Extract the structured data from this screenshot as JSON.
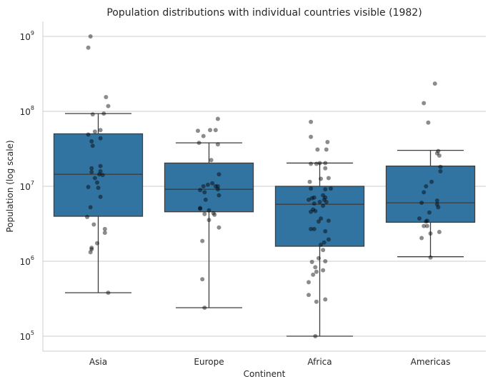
{
  "chart_data": {
    "type": "box",
    "title": "Population distributions with individual countries visible (1982)",
    "xlabel": "Continent",
    "ylabel": "Population (log scale)",
    "yscale": "log10",
    "ylim_log10": [
      4.8,
      9.2
    ],
    "yticks": [
      {
        "base": "10",
        "exp": "5",
        "log": 5
      },
      {
        "base": "10",
        "exp": "6",
        "log": 6
      },
      {
        "base": "10",
        "exp": "7",
        "log": 7
      },
      {
        "base": "10",
        "exp": "8",
        "log": 8
      },
      {
        "base": "10",
        "exp": "9",
        "log": 9
      }
    ],
    "grid": "horizontal",
    "box_color": "#3274a1",
    "point_color": "#000000",
    "categories": [
      "Asia",
      "Europe",
      "Africa",
      "Americas"
    ],
    "boxes_log10": [
      {
        "whisker_low": 5.58,
        "q1": 6.6,
        "median": 7.16,
        "q3": 7.7,
        "whisker_high": 7.97
      },
      {
        "whisker_low": 5.38,
        "q1": 6.66,
        "median": 6.96,
        "q3": 7.31,
        "whisker_high": 7.58
      },
      {
        "whisker_low": 5.0,
        "q1": 6.2,
        "median": 6.76,
        "q3": 7.0,
        "whisker_high": 7.31
      },
      {
        "whisker_low": 6.06,
        "q1": 6.52,
        "median": 6.78,
        "q3": 7.27,
        "whisker_high": 7.48
      }
    ],
    "points_log10": [
      [
        [
          9.0,
          -0.07
        ],
        [
          8.85,
          -0.09
        ],
        [
          8.19,
          0.07
        ],
        [
          8.07,
          0.09
        ],
        [
          7.96,
          -0.05
        ],
        [
          7.97,
          0.05
        ],
        [
          7.73,
          -0.03
        ],
        [
          7.75,
          0.02
        ],
        [
          7.69,
          -0.09
        ],
        [
          7.64,
          0.02
        ],
        [
          7.6,
          -0.06
        ],
        [
          7.54,
          -0.05
        ],
        [
          7.24,
          -0.06
        ],
        [
          7.27,
          0.02
        ],
        [
          7.19,
          -0.06
        ],
        [
          7.2,
          0.02
        ],
        [
          7.16,
          0.01
        ],
        [
          7.15,
          0.04
        ],
        [
          7.11,
          -0.03
        ],
        [
          7.05,
          -0.01
        ],
        [
          6.99,
          -0.09
        ],
        [
          6.98,
          0
        ],
        [
          6.86,
          0.02
        ],
        [
          6.72,
          -0.07
        ],
        [
          6.59,
          -0.1
        ],
        [
          6.49,
          -0.04
        ],
        [
          6.43,
          0.06
        ],
        [
          6.38,
          0.06
        ],
        [
          6.24,
          -0.01
        ],
        [
          6.18,
          -0.06
        ],
        [
          6.16,
          -0.06
        ],
        [
          6.12,
          -0.07
        ],
        [
          5.58,
          0.09
        ]
      ],
      [
        [
          7.9,
          0.08
        ],
        [
          7.74,
          -0.1
        ],
        [
          7.75,
          0.01
        ],
        [
          7.75,
          0.06
        ],
        [
          7.67,
          -0.05
        ],
        [
          7.58,
          -0.09
        ],
        [
          7.56,
          0.08
        ],
        [
          7.35,
          0.02
        ],
        [
          7.16,
          0.09
        ],
        [
          7.0,
          -0.05
        ],
        [
          7.02,
          -0.01
        ],
        [
          7.04,
          0.03
        ],
        [
          7.0,
          0.06
        ],
        [
          7.0,
          0.08
        ],
        [
          6.95,
          -0.08
        ],
        [
          6.96,
          0.08
        ],
        [
          6.92,
          -0.04
        ],
        [
          6.88,
          0.09
        ],
        [
          6.82,
          -0.03
        ],
        [
          6.7,
          -0.08
        ],
        [
          6.71,
          -0.08
        ],
        [
          6.68,
          0
        ],
        [
          6.64,
          0.04
        ],
        [
          6.63,
          -0.04
        ],
        [
          6.62,
          0.05
        ],
        [
          6.55,
          0
        ],
        [
          6.45,
          0.09
        ],
        [
          6.27,
          -0.06
        ],
        [
          5.76,
          -0.06
        ],
        [
          5.38,
          -0.04
        ]
      ],
      [
        [
          7.86,
          -0.08
        ],
        [
          7.66,
          -0.08
        ],
        [
          7.59,
          0.07
        ],
        [
          7.49,
          -0.02
        ],
        [
          7.49,
          0.06
        ],
        [
          7.3,
          -0.08
        ],
        [
          7.3,
          -0.03
        ],
        [
          7.31,
          0
        ],
        [
          7.31,
          0.05
        ],
        [
          7.24,
          0.05
        ],
        [
          7.1,
          0.01
        ],
        [
          7.11,
          0.08
        ],
        [
          7.06,
          -0.09
        ],
        [
          6.97,
          -0.08
        ],
        [
          6.96,
          0.05
        ],
        [
          6.97,
          0.1
        ],
        [
          6.88,
          0.03
        ],
        [
          6.82,
          -0.1
        ],
        [
          6.84,
          -0.07
        ],
        [
          6.85,
          -0.05
        ],
        [
          6.85,
          0.05
        ],
        [
          6.82,
          0.04
        ],
        [
          6.79,
          0.06
        ],
        [
          6.79,
          0
        ],
        [
          6.77,
          -0.05
        ],
        [
          6.74,
          0.03
        ],
        [
          6.66,
          -0.08
        ],
        [
          6.69,
          -0.06
        ],
        [
          6.67,
          -0.04
        ],
        [
          6.57,
          0.01
        ],
        [
          6.53,
          -0.01
        ],
        [
          6.54,
          0.08
        ],
        [
          6.43,
          -0.08
        ],
        [
          6.43,
          -0.05
        ],
        [
          6.4,
          0.05
        ],
        [
          6.29,
          0.08
        ],
        [
          6.25,
          0.04
        ],
        [
          6.22,
          0.01
        ],
        [
          6.15,
          0.03
        ],
        [
          6.04,
          -0.01
        ],
        [
          5.99,
          -0.07
        ],
        [
          6.0,
          0.05
        ],
        [
          5.92,
          -0.04
        ],
        [
          5.88,
          0.03
        ],
        [
          5.86,
          -0.03
        ],
        [
          5.82,
          -0.06
        ],
        [
          5.72,
          -0.1
        ],
        [
          5.55,
          -0.1
        ],
        [
          5.49,
          0.05
        ],
        [
          5.46,
          -0.03
        ],
        [
          5.0,
          -0.04
        ]
      ],
      [
        [
          8.37,
          0.04
        ],
        [
          8.11,
          -0.06
        ],
        [
          7.85,
          -0.02
        ],
        [
          7.47,
          0.07
        ],
        [
          7.44,
          0.06
        ],
        [
          7.41,
          0.08
        ],
        [
          7.26,
          0.09
        ],
        [
          7.2,
          0.09
        ],
        [
          7.06,
          0.01
        ],
        [
          7.0,
          -0.04
        ],
        [
          6.92,
          -0.06
        ],
        [
          6.81,
          0.06
        ],
        [
          6.78,
          -0.08
        ],
        [
          6.76,
          0.06
        ],
        [
          6.72,
          0.07
        ],
        [
          6.65,
          -0.01
        ],
        [
          6.57,
          -0.1
        ],
        [
          6.53,
          -0.04
        ],
        [
          6.54,
          -0.03
        ],
        [
          6.47,
          -0.06
        ],
        [
          6.47,
          -0.03
        ],
        [
          6.39,
          0.08
        ],
        [
          6.37,
          0
        ],
        [
          6.31,
          -0.08
        ],
        [
          6.05,
          0
        ]
      ]
    ]
  }
}
